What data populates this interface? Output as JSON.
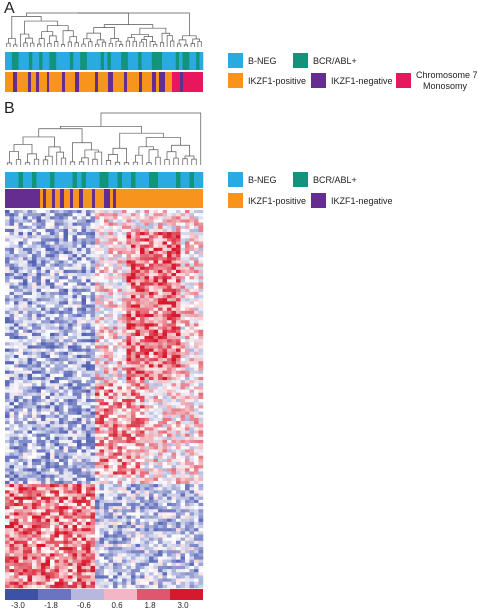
{
  "panels": [
    {
      "label": "A",
      "legend": [
        {
          "label": "B-NEG",
          "color": "#29abe2"
        },
        {
          "label": "BCR/ABL+",
          "color": "#12947c"
        },
        {
          "label": "IKZF1-positive",
          "color": "#f7941d"
        },
        {
          "label": "IKZF1-negative",
          "color": "#662d91"
        },
        {
          "label": "Chromosome 7",
          "label2": "Monosomy",
          "color": "#e8175d"
        }
      ]
    },
    {
      "label": "B",
      "legend": [
        {
          "label": "B-NEG",
          "color": "#29abe2"
        },
        {
          "label": "BCR/ABL+",
          "color": "#12947c"
        },
        {
          "label": "IKZF1-positive",
          "color": "#f7941d"
        },
        {
          "label": "IKZF1-negative",
          "color": "#662d91"
        }
      ]
    }
  ],
  "colorscale": {
    "ticks": [
      "-3.0",
      "-1.8",
      "-0.6",
      "0.6",
      "1.8",
      "3.0"
    ],
    "colors": [
      "#3c52a8",
      "#6a74c0",
      "#b6b8e0",
      "#f3b6c6",
      "#e0566f",
      "#d7192f"
    ]
  }
}
